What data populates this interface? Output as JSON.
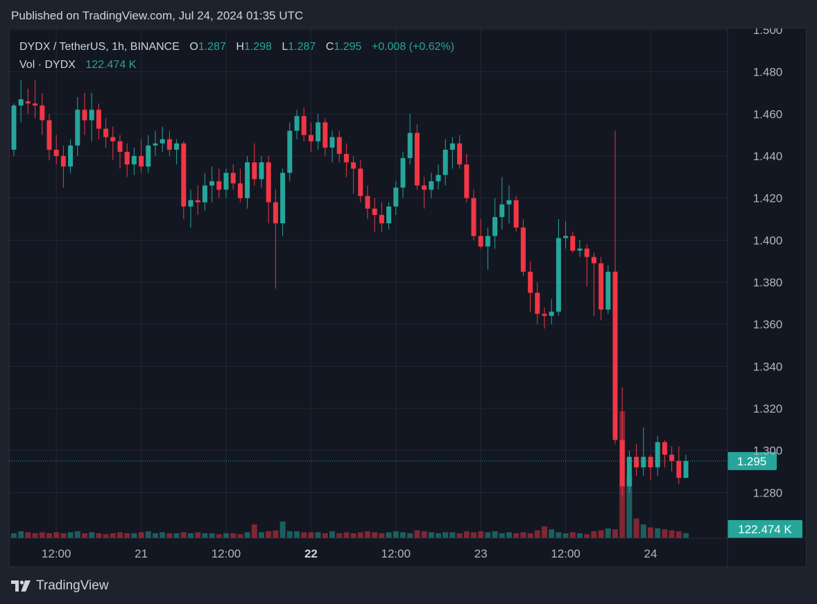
{
  "published": "Published on TradingView.com, Jul 24, 2024 01:35 UTC",
  "legend": {
    "symbol": "DYDX / TetherUS, 1h, BINANCE",
    "o_label": "O",
    "o": "1.287",
    "h_label": "H",
    "h": "1.298",
    "l_label": "L",
    "l": "1.287",
    "c_label": "C",
    "c": "1.295",
    "change": "+0.008 (+0.62%)",
    "vol_label": "Vol · DYDX",
    "vol": "122.474 K"
  },
  "footer": {
    "brand": "TradingView",
    "logo_icon": "tradingview-logo-icon"
  },
  "colors": {
    "up": "#26a69a",
    "down": "#f23645",
    "grid": "#232733",
    "text": "#b2b5be",
    "background": "#131722"
  },
  "chart_data": {
    "type": "candlestick",
    "interval": "1h",
    "price_axis": {
      "min": 1.26,
      "max": 1.5,
      "ticks": [
        "1.280",
        "1.300",
        "1.320",
        "1.340",
        "1.360",
        "1.380",
        "1.400",
        "1.420",
        "1.440",
        "1.460",
        "1.480",
        "1.500"
      ]
    },
    "time_labels": [
      {
        "label": "12:00",
        "index": 6,
        "bold": false
      },
      {
        "label": "21",
        "index": 18,
        "bold": false
      },
      {
        "label": "12:00",
        "index": 30,
        "bold": false
      },
      {
        "label": "22",
        "index": 42,
        "bold": true
      },
      {
        "label": "12:00",
        "index": 54,
        "bold": false
      },
      {
        "label": "23",
        "index": 66,
        "bold": false
      },
      {
        "label": "12:00",
        "index": 78,
        "bold": false
      },
      {
        "label": "24",
        "index": 90,
        "bold": false
      }
    ],
    "last_price_label": "1.295",
    "last_price": 1.295,
    "volume_label": "122.474 K",
    "ohlc": [
      [
        1.443,
        1.465,
        1.44,
        1.464
      ],
      [
        1.464,
        1.476,
        1.456,
        1.467
      ],
      [
        1.466,
        1.472,
        1.46,
        1.465
      ],
      [
        1.465,
        1.476,
        1.458,
        1.464
      ],
      [
        1.464,
        1.47,
        1.45,
        1.457
      ],
      [
        1.457,
        1.46,
        1.438,
        1.443
      ],
      [
        1.443,
        1.45,
        1.436,
        1.44
      ],
      [
        1.44,
        1.445,
        1.425,
        1.435
      ],
      [
        1.435,
        1.448,
        1.432,
        1.445
      ],
      [
        1.445,
        1.468,
        1.44,
        1.462
      ],
      [
        1.462,
        1.47,
        1.45,
        1.457
      ],
      [
        1.457,
        1.47,
        1.447,
        1.462
      ],
      [
        1.462,
        1.465,
        1.448,
        1.453
      ],
      [
        1.453,
        1.458,
        1.444,
        1.449
      ],
      [
        1.449,
        1.454,
        1.438,
        1.447
      ],
      [
        1.447,
        1.45,
        1.434,
        1.442
      ],
      [
        1.442,
        1.446,
        1.43,
        1.436
      ],
      [
        1.436,
        1.444,
        1.431,
        1.44
      ],
      [
        1.44,
        1.448,
        1.432,
        1.435
      ],
      [
        1.435,
        1.45,
        1.432,
        1.445
      ],
      [
        1.445,
        1.452,
        1.44,
        1.446
      ],
      [
        1.446,
        1.454,
        1.442,
        1.448
      ],
      [
        1.448,
        1.452,
        1.44,
        1.443
      ],
      [
        1.443,
        1.448,
        1.436,
        1.446
      ],
      [
        1.446,
        1.447,
        1.41,
        1.416
      ],
      [
        1.416,
        1.424,
        1.406,
        1.419
      ],
      [
        1.419,
        1.426,
        1.412,
        1.418
      ],
      [
        1.418,
        1.432,
        1.414,
        1.426
      ],
      [
        1.426,
        1.435,
        1.418,
        1.428
      ],
      [
        1.428,
        1.434,
        1.42,
        1.424
      ],
      [
        1.424,
        1.434,
        1.42,
        1.432
      ],
      [
        1.432,
        1.436,
        1.424,
        1.427
      ],
      [
        1.427,
        1.434,
        1.418,
        1.42
      ],
      [
        1.42,
        1.44,
        1.415,
        1.437
      ],
      [
        1.437,
        1.446,
        1.426,
        1.429
      ],
      [
        1.429,
        1.44,
        1.425,
        1.437
      ],
      [
        1.437,
        1.44,
        1.408,
        1.418
      ],
      [
        1.418,
        1.424,
        1.377,
        1.408
      ],
      [
        1.408,
        1.434,
        1.402,
        1.432
      ],
      [
        1.432,
        1.456,
        1.428,
        1.452
      ],
      [
        1.452,
        1.462,
        1.448,
        1.459
      ],
      [
        1.459,
        1.463,
        1.447,
        1.45
      ],
      [
        1.45,
        1.456,
        1.442,
        1.447
      ],
      [
        1.447,
        1.46,
        1.443,
        1.456
      ],
      [
        1.456,
        1.458,
        1.44,
        1.444
      ],
      [
        1.444,
        1.452,
        1.437,
        1.449
      ],
      [
        1.449,
        1.452,
        1.437,
        1.441
      ],
      [
        1.441,
        1.446,
        1.43,
        1.437
      ],
      [
        1.437,
        1.44,
        1.422,
        1.434
      ],
      [
        1.434,
        1.438,
        1.418,
        1.421
      ],
      [
        1.421,
        1.426,
        1.41,
        1.415
      ],
      [
        1.415,
        1.42,
        1.404,
        1.412
      ],
      [
        1.412,
        1.418,
        1.404,
        1.408
      ],
      [
        1.408,
        1.418,
        1.405,
        1.416
      ],
      [
        1.416,
        1.428,
        1.412,
        1.425
      ],
      [
        1.425,
        1.442,
        1.42,
        1.439
      ],
      [
        1.439,
        1.46,
        1.436,
        1.451
      ],
      [
        1.451,
        1.455,
        1.424,
        1.426
      ],
      [
        1.426,
        1.43,
        1.415,
        1.424
      ],
      [
        1.424,
        1.432,
        1.42,
        1.428
      ],
      [
        1.428,
        1.436,
        1.424,
        1.431
      ],
      [
        1.431,
        1.448,
        1.426,
        1.443
      ],
      [
        1.443,
        1.449,
        1.434,
        1.446
      ],
      [
        1.446,
        1.45,
        1.434,
        1.436
      ],
      [
        1.436,
        1.441,
        1.418,
        1.42
      ],
      [
        1.42,
        1.424,
        1.4,
        1.402
      ],
      [
        1.402,
        1.41,
        1.396,
        1.397
      ],
      [
        1.397,
        1.406,
        1.386,
        1.402
      ],
      [
        1.402,
        1.42,
        1.396,
        1.411
      ],
      [
        1.411,
        1.43,
        1.405,
        1.417
      ],
      [
        1.417,
        1.426,
        1.408,
        1.419
      ],
      [
        1.419,
        1.421,
        1.404,
        1.406
      ],
      [
        1.406,
        1.41,
        1.383,
        1.385
      ],
      [
        1.385,
        1.39,
        1.366,
        1.375
      ],
      [
        1.375,
        1.38,
        1.36,
        1.365
      ],
      [
        1.365,
        1.368,
        1.358,
        1.364
      ],
      [
        1.364,
        1.372,
        1.36,
        1.366
      ],
      [
        1.366,
        1.41,
        1.364,
        1.401
      ],
      [
        1.401,
        1.409,
        1.396,
        1.402
      ],
      [
        1.402,
        1.404,
        1.394,
        1.395
      ],
      [
        1.395,
        1.4,
        1.392,
        1.396
      ],
      [
        1.396,
        1.398,
        1.378,
        1.392
      ],
      [
        1.392,
        1.394,
        1.364,
        1.389
      ],
      [
        1.389,
        1.392,
        1.362,
        1.367
      ],
      [
        1.367,
        1.388,
        1.365,
        1.385
      ],
      [
        1.385,
        1.452,
        1.303,
        1.305
      ],
      [
        1.305,
        1.33,
        1.278,
        1.283
      ],
      [
        1.283,
        1.3,
        1.28,
        1.297
      ],
      [
        1.297,
        1.303,
        1.288,
        1.292
      ],
      [
        1.292,
        1.311,
        1.288,
        1.297
      ],
      [
        1.297,
        1.298,
        1.286,
        1.292
      ],
      [
        1.292,
        1.307,
        1.288,
        1.304
      ],
      [
        1.304,
        1.305,
        1.292,
        1.298
      ],
      [
        1.298,
        1.302,
        1.29,
        1.295
      ],
      [
        1.295,
        1.302,
        1.284,
        1.287
      ],
      [
        1.287,
        1.298,
        1.287,
        1.295
      ]
    ],
    "volume": [
      5,
      7,
      6,
      5,
      6,
      5,
      6,
      5,
      6,
      7,
      5,
      6,
      5,
      4,
      5,
      6,
      5,
      5,
      6,
      7,
      5,
      6,
      5,
      5,
      6,
      5,
      6,
      5,
      5,
      4,
      5,
      5,
      4,
      6,
      14,
      6,
      7,
      8,
      17,
      7,
      7,
      6,
      6,
      6,
      5,
      7,
      5,
      6,
      5,
      6,
      7,
      6,
      5,
      6,
      7,
      6,
      5,
      8,
      7,
      6,
      5,
      6,
      6,
      5,
      7,
      6,
      7,
      6,
      7,
      5,
      6,
      5,
      6,
      5,
      8,
      12,
      9,
      6,
      5,
      6,
      5,
      4,
      7,
      8,
      10,
      9,
      130,
      65,
      20,
      14,
      11,
      10,
      9,
      8,
      7,
      5
    ]
  }
}
